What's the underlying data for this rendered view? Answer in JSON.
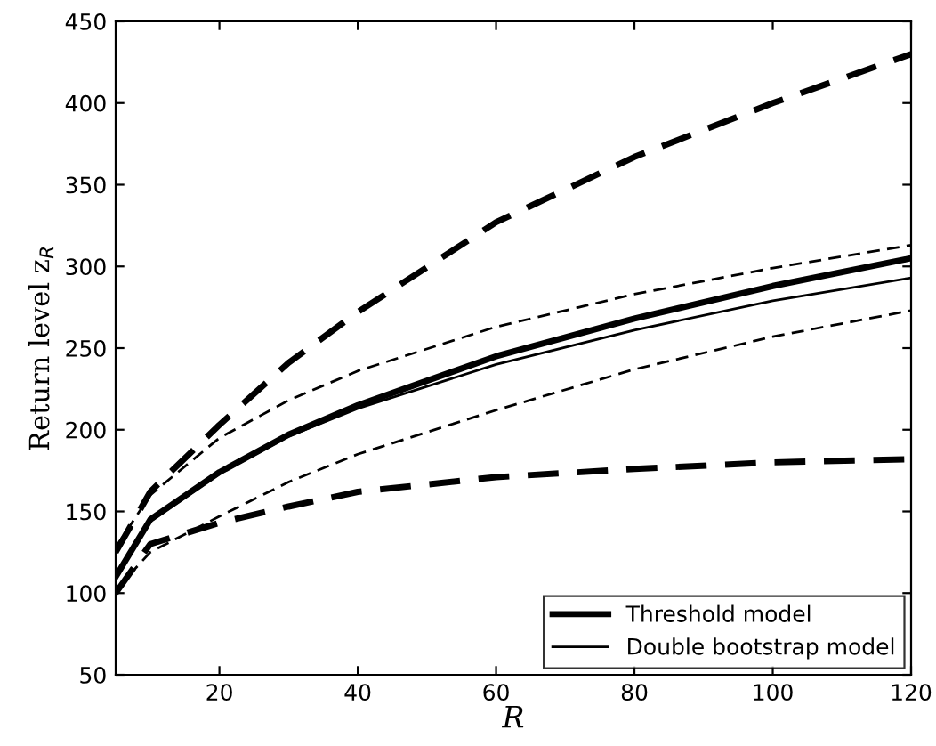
{
  "chart_data": {
    "type": "line",
    "xlabel": "R",
    "ylabel": "Return level z$_{R}$",
    "x": [
      5,
      10,
      20,
      30,
      40,
      60,
      80,
      100,
      120
    ],
    "xlim": [
      5,
      120
    ],
    "xticks": [
      20,
      40,
      60,
      80,
      100,
      120
    ],
    "ylim": [
      50,
      450
    ],
    "yticks": [
      50,
      100,
      150,
      200,
      250,
      300,
      350,
      400,
      450
    ],
    "grid": false,
    "legend": "bottom right",
    "marker": "none",
    "series": [
      {
        "name": "Threshold model",
        "color": "#000000",
        "line_style": "solid",
        "values": [
          110,
          145,
          174,
          197,
          215,
          245,
          268,
          288,
          305
        ]
      },
      {
        "name": "Double bootstrap model",
        "color": "#000000",
        "line_style": "solid",
        "values": [
          110,
          144,
          173,
          196,
          213,
          240,
          261,
          279,
          293
        ]
      },
      {
        "color": "#000000",
        "line_style": "dashed",
        "values": [
          125,
          162,
          203,
          241,
          272,
          327,
          367,
          400,
          430
        ]
      },
      {
        "color": "#000000",
        "line_style": "dashed",
        "values": [
          100,
          130,
          143,
          153,
          162,
          171,
          176,
          180,
          182
        ]
      },
      {
        "color": "#000000",
        "line_style": "dashed",
        "values": [
          128,
          160,
          195,
          218,
          236,
          263,
          283,
          299,
          313
        ]
      },
      {
        "color": "#000000",
        "line_style": "dashed",
        "values": [
          102,
          125,
          147,
          168,
          185,
          212,
          237,
          257,
          273
        ]
      }
    ]
  }
}
